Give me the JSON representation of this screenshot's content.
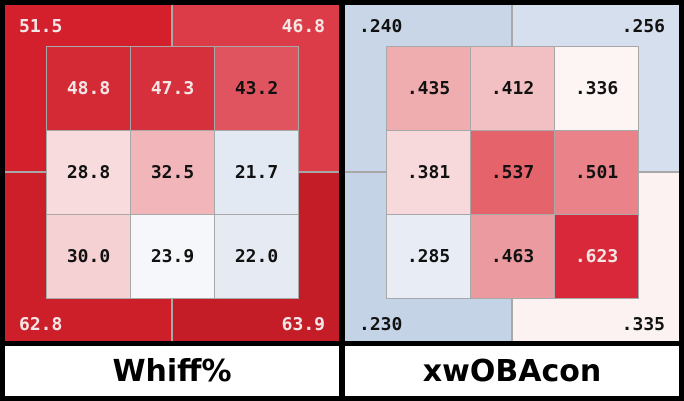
{
  "chart_data": [
    {
      "type": "heatmap",
      "title": "Whiff%",
      "outer": {
        "top_left": "51.5",
        "top_right": "46.8",
        "bottom_left": "62.8",
        "bottom_right": "63.9"
      },
      "outer_colors": {
        "top_left": "#d41f2d",
        "top_right": "#dc3b48",
        "bottom_left": "#cc1f2a",
        "bottom_right": "#c41d28"
      },
      "outer_text_color": "#f5e6e6",
      "grid": [
        [
          "48.8",
          "47.3",
          "43.2"
        ],
        [
          "28.8",
          "32.5",
          "21.7"
        ],
        [
          "30.0",
          "23.9",
          "22.0"
        ]
      ],
      "grid_colors": [
        [
          "#d42a36",
          "#d6303c",
          "#e0545f"
        ],
        [
          "#f8dcdd",
          "#f2b6ba",
          "#e3e9f2"
        ],
        [
          "#f6d1d3",
          "#f5f7fa",
          "#e5eaf3"
        ]
      ],
      "grid_text_colors": [
        [
          "#f5e6e6",
          "#f5e6e6",
          "#111"
        ],
        [
          "#111",
          "#111",
          "#111"
        ],
        [
          "#111",
          "#111",
          "#111"
        ]
      ]
    },
    {
      "type": "heatmap",
      "title": "xwOBAcon",
      "outer": {
        "top_left": ".240",
        "top_right": ".256",
        "bottom_left": ".230",
        "bottom_right": ".335"
      },
      "outer_colors": {
        "top_left": "#c9d6e8",
        "top_right": "#d6dfed",
        "bottom_left": "#c5d3e7",
        "bottom_right": "#fdf2f2"
      },
      "outer_text_color": "#111",
      "grid": [
        [
          ".435",
          ".412",
          ".336"
        ],
        [
          ".381",
          ".537",
          ".501"
        ],
        [
          ".285",
          ".463",
          ".623"
        ]
      ],
      "grid_colors": [
        [
          "#efadb0",
          "#f2bfc2",
          "#fdf4f4"
        ],
        [
          "#f8d9db",
          "#e5636a",
          "#ea8289"
        ],
        [
          "#e8edf5",
          "#eb9ba0",
          "#d8283a"
        ]
      ],
      "grid_text_colors": [
        [
          "#111",
          "#111",
          "#111"
        ],
        [
          "#111",
          "#111",
          "#111"
        ],
        [
          "#111",
          "#111",
          "#f5e6e6"
        ]
      ]
    }
  ]
}
